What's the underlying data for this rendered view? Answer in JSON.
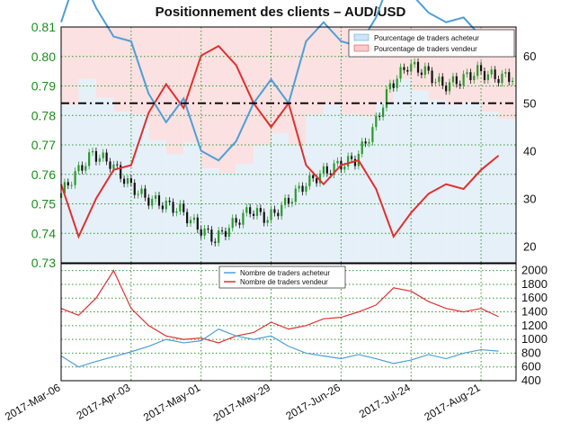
{
  "chart_data": [
    {
      "type": "candlestick+line",
      "title": "Positionnement des clients – AUD/USD",
      "left_axis": {
        "ticks": [
          "0.73",
          "0.74",
          "0.75",
          "0.76",
          "0.77",
          "0.78",
          "0.79",
          "0.80",
          "0.81"
        ],
        "range": [
          0.73,
          0.81
        ],
        "color": "#1a8f1a"
      },
      "right_axis": {
        "ticks": [
          "20",
          "30",
          "40",
          "50",
          "60"
        ],
        "range": [
          16.5,
          66
        ]
      },
      "reference_line": {
        "value": 50,
        "style": "dash-dot"
      },
      "legend": {
        "placement": "top-right",
        "items": [
          {
            "label": "Pourcentage de traders acheteur",
            "color": "#4d9fd6"
          },
          {
            "label": "Pourcentage de traders vendeur",
            "color": "#e03030"
          }
        ]
      },
      "price_series": {
        "name": "AUD/USD",
        "x": [
          "2017-03-06",
          "2017-03-13",
          "2017-03-20",
          "2017-03-27",
          "2017-04-03",
          "2017-04-10",
          "2017-04-17",
          "2017-04-24",
          "2017-05-01",
          "2017-05-08",
          "2017-05-15",
          "2017-05-22",
          "2017-05-29",
          "2017-06-05",
          "2017-06-12",
          "2017-06-19",
          "2017-06-26",
          "2017-07-03",
          "2017-07-10",
          "2017-07-17",
          "2017-07-24",
          "2017-07-31",
          "2017-08-07",
          "2017-08-14",
          "2017-08-21",
          "2017-08-28"
        ],
        "close": [
          0.752,
          0.76,
          0.767,
          0.764,
          0.757,
          0.752,
          0.75,
          0.748,
          0.742,
          0.738,
          0.743,
          0.748,
          0.745,
          0.75,
          0.756,
          0.76,
          0.763,
          0.765,
          0.775,
          0.79,
          0.797,
          0.795,
          0.79,
          0.792,
          0.795,
          0.793
        ]
      },
      "short_pct_series": {
        "name": "Pourcentage de traders vendeur",
        "x": [
          "2017-03-06",
          "2017-03-13",
          "2017-03-20",
          "2017-03-27",
          "2017-04-03",
          "2017-04-10",
          "2017-04-17",
          "2017-04-24",
          "2017-05-01",
          "2017-05-08",
          "2017-05-15",
          "2017-05-22",
          "2017-05-29",
          "2017-06-05",
          "2017-06-12",
          "2017-06-19",
          "2017-06-26",
          "2017-07-03",
          "2017-07-10",
          "2017-07-17",
          "2017-07-24",
          "2017-07-31",
          "2017-08-07",
          "2017-08-14",
          "2017-08-21",
          "2017-08-28"
        ],
        "values": [
          33,
          22,
          30,
          36,
          37,
          48,
          54,
          49,
          60,
          62,
          58,
          50,
          45,
          50,
          37,
          33,
          37,
          38,
          32,
          22,
          27,
          31,
          33,
          32,
          36,
          39
        ]
      },
      "long_pct_series": {
        "name": "Pourcentage de traders acheteur",
        "x": [
          "2017-03-06",
          "2017-03-13",
          "2017-03-20",
          "2017-03-27",
          "2017-04-03",
          "2017-04-10",
          "2017-04-17",
          "2017-04-24",
          "2017-05-01",
          "2017-05-08",
          "2017-05-15",
          "2017-05-22",
          "2017-05-29",
          "2017-06-05",
          "2017-06-12",
          "2017-06-19",
          "2017-06-26",
          "2017-07-03",
          "2017-07-10",
          "2017-07-17",
          "2017-07-24",
          "2017-07-31",
          "2017-08-07",
          "2017-08-14",
          "2017-08-21",
          "2017-08-28"
        ],
        "values": [
          67,
          78,
          70,
          64,
          63,
          52,
          46,
          51,
          40,
          38,
          42,
          50,
          55,
          50,
          63,
          67,
          63,
          62,
          68,
          78,
          73,
          69,
          67,
          68,
          64,
          61
        ]
      }
    },
    {
      "type": "line",
      "y_axis": {
        "ticks": [
          "400",
          "600",
          "800",
          "1000",
          "1200",
          "1400",
          "1600",
          "1800",
          "2000"
        ],
        "range": [
          400,
          2100
        ],
        "side": "right"
      },
      "legend": {
        "placement": "top-center",
        "items": [
          {
            "label": "Nombre de traders acheteur",
            "color": "#4d9fd6"
          },
          {
            "label": "Nombre de traders vendeur",
            "color": "#e03030"
          }
        ]
      },
      "x_ticks": [
        "2017-Mar-06",
        "2017-Apr-03",
        "2017-May-01",
        "2017-May-29",
        "2017-Jun-26",
        "2017-Jul-24",
        "2017-Aug-21"
      ],
      "series": [
        {
          "name": "Nombre de traders acheteur",
          "x": [
            "2017-03-06",
            "2017-03-13",
            "2017-03-20",
            "2017-03-27",
            "2017-04-03",
            "2017-04-10",
            "2017-04-17",
            "2017-04-24",
            "2017-05-01",
            "2017-05-08",
            "2017-05-15",
            "2017-05-22",
            "2017-05-29",
            "2017-06-05",
            "2017-06-12",
            "2017-06-19",
            "2017-06-26",
            "2017-07-03",
            "2017-07-10",
            "2017-07-17",
            "2017-07-24",
            "2017-07-31",
            "2017-08-07",
            "2017-08-14",
            "2017-08-21",
            "2017-08-28"
          ],
          "values": [
            760,
            600,
            680,
            750,
            820,
            900,
            1000,
            950,
            980,
            1150,
            1050,
            1000,
            1050,
            900,
            800,
            760,
            720,
            780,
            720,
            650,
            700,
            780,
            720,
            800,
            850,
            830
          ]
        },
        {
          "name": "Nombre de traders vendeur",
          "x": [
            "2017-03-06",
            "2017-03-13",
            "2017-03-20",
            "2017-03-27",
            "2017-04-03",
            "2017-04-10",
            "2017-04-17",
            "2017-04-24",
            "2017-05-01",
            "2017-05-08",
            "2017-05-15",
            "2017-05-22",
            "2017-05-29",
            "2017-06-05",
            "2017-06-12",
            "2017-06-19",
            "2017-06-26",
            "2017-07-03",
            "2017-07-10",
            "2017-07-17",
            "2017-07-24",
            "2017-07-31",
            "2017-08-07",
            "2017-08-14",
            "2017-08-21",
            "2017-08-28"
          ],
          "values": [
            1450,
            1350,
            1600,
            2000,
            1450,
            1200,
            1050,
            1000,
            1020,
            950,
            1050,
            1100,
            1250,
            1150,
            1200,
            1300,
            1320,
            1400,
            1500,
            1750,
            1700,
            1550,
            1450,
            1400,
            1450,
            1330
          ]
        }
      ]
    }
  ]
}
